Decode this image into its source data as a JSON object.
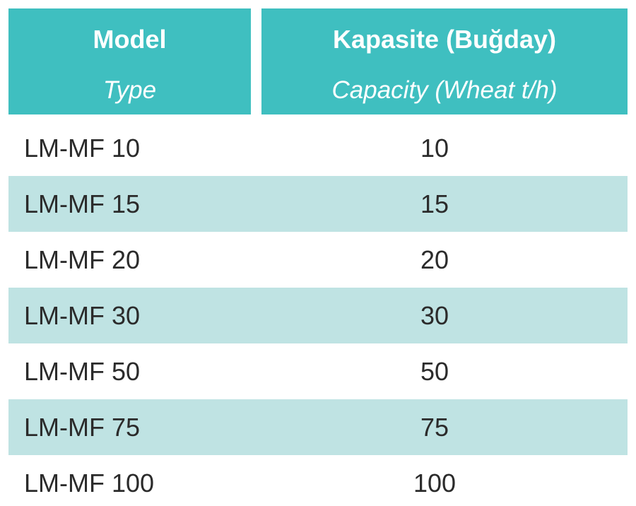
{
  "table": {
    "columns": [
      {
        "title": "Model",
        "subtitle": "Type"
      },
      {
        "title": "Kapasite (Buğday)",
        "subtitle": "Capacity (Wheat t/h)"
      }
    ],
    "rows": [
      {
        "model": "LM-MF 10",
        "capacity": "10"
      },
      {
        "model": "LM-MF 15",
        "capacity": "15"
      },
      {
        "model": "LM-MF 20",
        "capacity": "20"
      },
      {
        "model": "LM-MF 30",
        "capacity": "30"
      },
      {
        "model": "LM-MF 50",
        "capacity": "50"
      },
      {
        "model": "LM-MF 75",
        "capacity": "75"
      },
      {
        "model": "LM-MF 100",
        "capacity": "100"
      }
    ]
  },
  "colors": {
    "header_bg": "#3fbfc0",
    "header_text": "#ffffff",
    "stripe_bg": "#bfe3e3",
    "body_text": "#2b2b2b"
  }
}
